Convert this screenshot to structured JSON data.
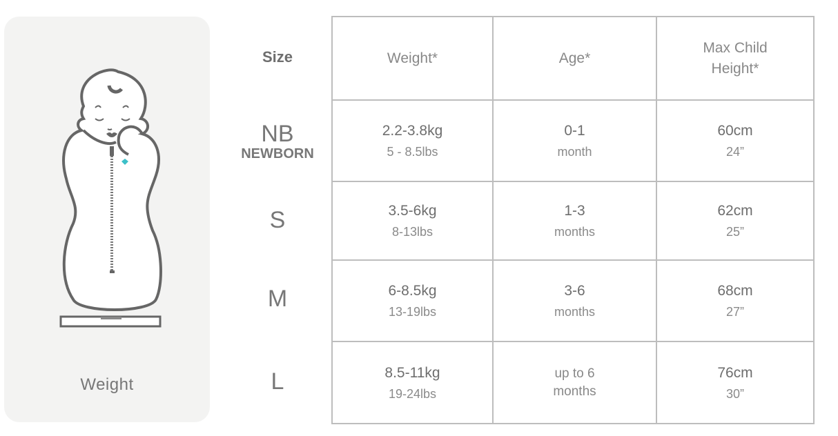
{
  "card": {
    "label": "Weight",
    "icon": "swaddled-baby-on-scale-icon",
    "accent": "#3cc0c8"
  },
  "table": {
    "size_header": "Size",
    "headers": [
      "Weight*",
      "Age*",
      "Max Child Height*"
    ],
    "rows": [
      {
        "size": "NB",
        "size_sub": "NEWBORN",
        "weight_kg": "2.2-3.8kg",
        "weight_lbs": "5 - 8.5lbs",
        "age": "0-1",
        "age_unit": "month",
        "height_cm": "60cm",
        "height_in": "24”"
      },
      {
        "size": "S",
        "size_sub": "",
        "weight_kg": "3.5-6kg",
        "weight_lbs": "8-13lbs",
        "age": "1-3",
        "age_unit": "months",
        "height_cm": "62cm",
        "height_in": "25”"
      },
      {
        "size": "M",
        "size_sub": "",
        "weight_kg": "6-8.5kg",
        "weight_lbs": "13-19lbs",
        "age": "3-6",
        "age_unit": "months",
        "height_cm": "68cm",
        "height_in": "27”"
      },
      {
        "size": "L",
        "size_sub": "",
        "weight_kg": "8.5-11kg",
        "weight_lbs": "19-24lbs",
        "age": "",
        "age_unit": "up to 6 months",
        "height_cm": "76cm",
        "height_in": "30”"
      }
    ]
  }
}
